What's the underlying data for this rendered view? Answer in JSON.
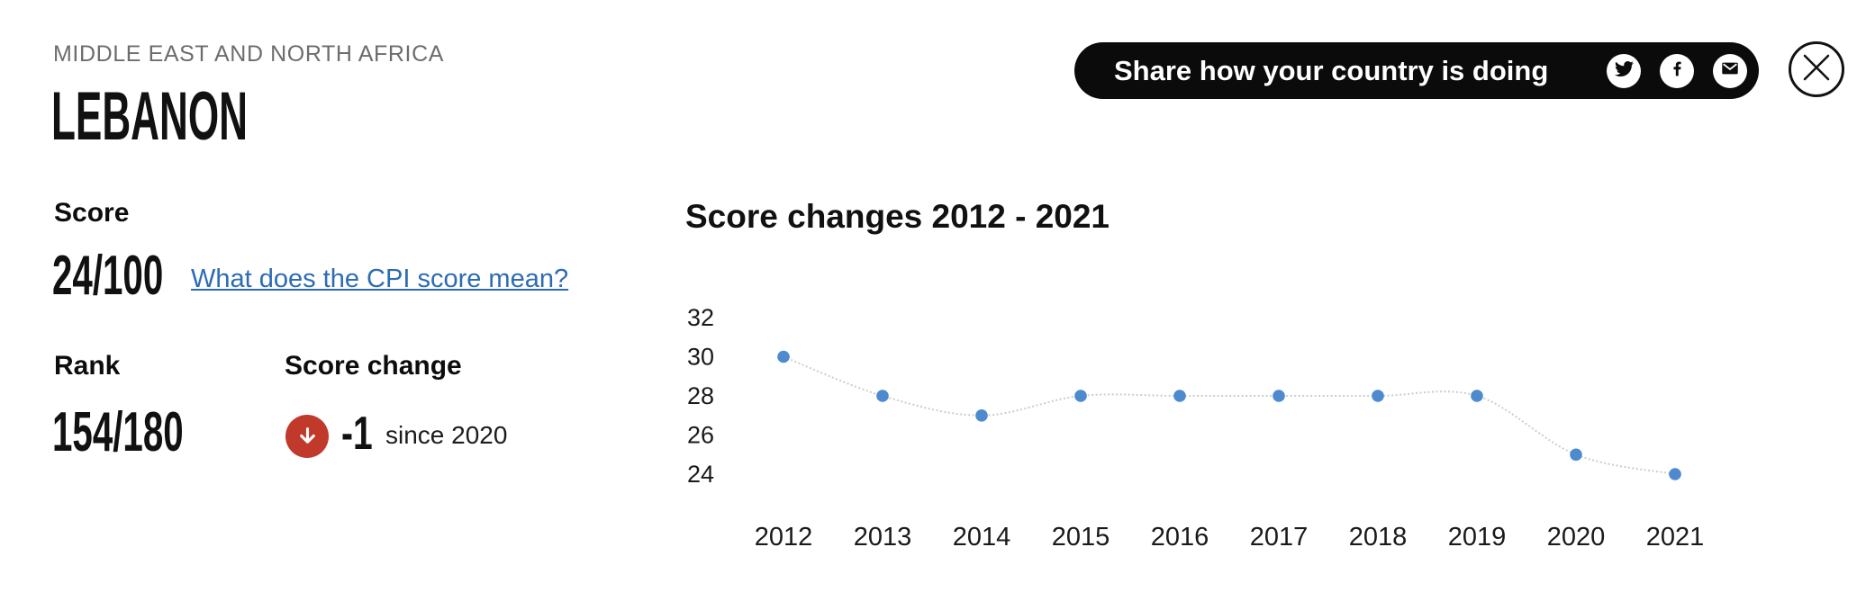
{
  "header": {
    "region": "MIDDLE EAST AND NORTH AFRICA",
    "country": "LEBANON"
  },
  "share": {
    "label": "Share how your country is doing"
  },
  "stats": {
    "score_label": "Score",
    "score_value": "24/100",
    "score_link_label": "What does the CPI score mean?",
    "rank_label": "Rank",
    "rank_value": "154/180",
    "change_label": "Score change",
    "change_value": "-1",
    "change_note": "since 2020"
  },
  "chart_data": {
    "type": "line",
    "title": "Score changes 2012 - 2021",
    "x": [
      "2012",
      "2013",
      "2014",
      "2015",
      "2016",
      "2017",
      "2018",
      "2019",
      "2020",
      "2021"
    ],
    "values": [
      30,
      28,
      27,
      28,
      28,
      28,
      28,
      28,
      25,
      24
    ],
    "yticks": [
      32,
      30,
      28,
      26,
      24
    ],
    "ylim": [
      23,
      33
    ],
    "xlabel": "",
    "ylabel": "",
    "grid": false,
    "legend": "none",
    "point_color": "#4d8bce",
    "line_color": "#cdcdcd"
  },
  "icons": {
    "twitter": "twitter-icon",
    "facebook": "facebook-icon",
    "email": "email-icon",
    "close": "close-icon",
    "score_change_direction": "down-arrow-icon"
  },
  "colors": {
    "accent_red": "#c0392b",
    "link_blue": "#2d6cb3",
    "pill_black": "#0b0b0b",
    "region_gray": "#6d6d6d",
    "point_blue": "#4d8bce"
  }
}
